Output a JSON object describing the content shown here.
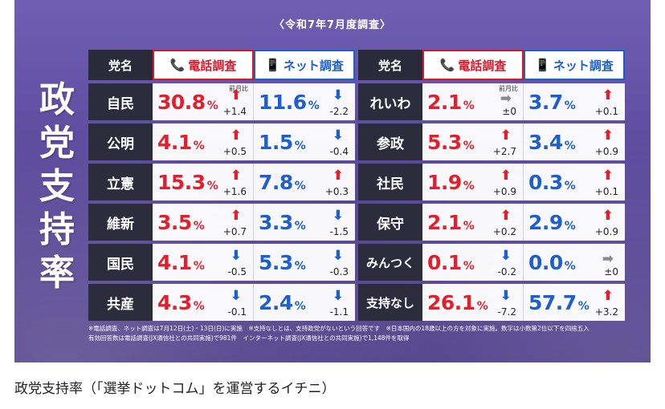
{
  "survey_label": "〈令和7年7月度調査〉",
  "title_chars": [
    "政",
    "党",
    "支",
    "持",
    "率"
  ],
  "headers": {
    "party": "党名",
    "phone": "電話調査",
    "net": "ネット調査",
    "phone_icon": "phone-icon",
    "net_icon": "smartphone-icon"
  },
  "prev_month_label": "前月比",
  "pct_unit": "%",
  "colors": {
    "phone_red": "#e41f2d",
    "net_blue": "#1e5fd0",
    "party_bg": "#2c2c3c",
    "panel": "#5b4a9c"
  },
  "left_rows": [
    {
      "party": "自民",
      "phone": "30.8",
      "phone_dir": "up",
      "phone_chg": "+1.4",
      "net": "11.6",
      "net_dir": "down",
      "net_chg": "-2.2"
    },
    {
      "party": "公明",
      "phone": "4.1",
      "phone_dir": "up",
      "phone_chg": "+0.5",
      "net": "1.5",
      "net_dir": "down",
      "net_chg": "-0.4"
    },
    {
      "party": "立憲",
      "phone": "15.3",
      "phone_dir": "up",
      "phone_chg": "+1.6",
      "net": "7.8",
      "net_dir": "up",
      "net_chg": "+0.3"
    },
    {
      "party": "維新",
      "phone": "3.5",
      "phone_dir": "up",
      "phone_chg": "+0.7",
      "net": "3.3",
      "net_dir": "down",
      "net_chg": "-1.5"
    },
    {
      "party": "国民",
      "phone": "4.1",
      "phone_dir": "down",
      "phone_chg": "-0.5",
      "net": "5.3",
      "net_dir": "down",
      "net_chg": "-0.3"
    },
    {
      "party": "共産",
      "phone": "4.3",
      "phone_dir": "down",
      "phone_chg": "-0.1",
      "net": "2.4",
      "net_dir": "down",
      "net_chg": "-1.1"
    }
  ],
  "right_rows": [
    {
      "party": "れいわ",
      "phone": "2.1",
      "phone_dir": "flat",
      "phone_chg": "±0",
      "net": "3.7",
      "net_dir": "up",
      "net_chg": "+0.1"
    },
    {
      "party": "参政",
      "phone": "5.3",
      "phone_dir": "up",
      "phone_chg": "+2.7",
      "net": "3.4",
      "net_dir": "up",
      "net_chg": "+0.9"
    },
    {
      "party": "社民",
      "phone": "1.9",
      "phone_dir": "up",
      "phone_chg": "+0.9",
      "net": "0.3",
      "net_dir": "up",
      "net_chg": "+0.1"
    },
    {
      "party": "保守",
      "phone": "2.1",
      "phone_dir": "up",
      "phone_chg": "+0.2",
      "net": "2.9",
      "net_dir": "up",
      "net_chg": "+0.9"
    },
    {
      "party": "みんつく",
      "phone": "0.1",
      "phone_dir": "down",
      "phone_chg": "-0.2",
      "net": "0.0",
      "net_dir": "flat",
      "net_chg": "±0"
    },
    {
      "party": "支持なし",
      "phone": "26.1",
      "phone_dir": "down",
      "phone_chg": "-7.2",
      "net": "57.7",
      "net_dir": "up",
      "net_chg": "+3.2"
    }
  ],
  "notes": [
    "※電話調査、ネット調査は7月12日(土)・13日(日)に実施　※支持なしとは、支持政党がないという回答です　※日本国内の18歳以上の方を対象に実施。数字は小数第2位以下を四捨五入",
    "有効回答数は電話調査(JX通信社との共同実施)で981件　インターネット調査(JX通信社との共同実施)で1,148件を取得"
  ],
  "caption": "政党支持率（「選挙ドットコム」を運営するイチニ）"
}
